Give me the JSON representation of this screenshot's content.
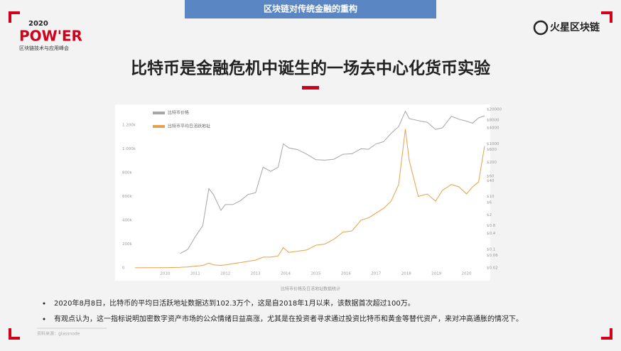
{
  "header": {
    "banner": "区块链对传统金融的重构",
    "logo_year": "2020",
    "logo_name": "POW'ER",
    "logo_subtitle": "区块链技术与应用峰会",
    "brand": "火星区块链"
  },
  "title": "比特币是金融危机中诞生的一场去中心化货币实验",
  "chart_data": {
    "type": "line",
    "x": [
      2009.0,
      2009.5,
      2010.0,
      2010.5,
      2010.75,
      2011.0,
      2011.25,
      2011.45,
      2011.6,
      2011.85,
      2012.0,
      2012.25,
      2012.5,
      2012.75,
      2013.0,
      2013.25,
      2013.5,
      2013.75,
      2013.92,
      2014.1,
      2014.4,
      2014.7,
      2015.0,
      2015.3,
      2015.6,
      2015.9,
      2016.2,
      2016.5,
      2016.75,
      2017.0,
      2017.25,
      2017.5,
      2017.75,
      2017.97,
      2018.1,
      2018.4,
      2018.7,
      2018.97,
      2019.2,
      2019.5,
      2019.75,
      2020.0,
      2020.2,
      2020.4,
      2020.6
    ],
    "series": [
      {
        "name": "比特币价格",
        "color": "#a6a6a6",
        "axis": "y2",
        "values": [
          null,
          null,
          null,
          0.07,
          0.1,
          0.3,
          0.8,
          20,
          12,
          3,
          5,
          5,
          7,
          12,
          14,
          130,
          90,
          130,
          1000,
          700,
          600,
          400,
          250,
          240,
          260,
          400,
          420,
          650,
          620,
          1000,
          1200,
          2500,
          4500,
          17000,
          9000,
          7500,
          6500,
          3500,
          4000,
          11000,
          8500,
          7200,
          6000,
          9500,
          11500
        ]
      },
      {
        "name": "比特币平均日活跃地址",
        "color": "#e8a04a",
        "values": [
          500,
          1000,
          2000,
          5000,
          8000,
          15000,
          20000,
          40000,
          25000,
          20000,
          25000,
          35000,
          45000,
          55000,
          65000,
          90000,
          90000,
          100000,
          170000,
          130000,
          140000,
          150000,
          190000,
          200000,
          240000,
          300000,
          310000,
          400000,
          420000,
          460000,
          500000,
          560000,
          700000,
          1165000,
          900000,
          600000,
          620000,
          560000,
          650000,
          700000,
          680000,
          620000,
          680000,
          720000,
          1023000
        ]
      }
    ],
    "xlim": [
      2009,
      2020.6
    ],
    "xticks": [
      2010,
      2011,
      2012,
      2013,
      2014,
      2015,
      2016,
      2017,
      2018,
      2019,
      2020
    ],
    "ylim": [
      0,
      1330000
    ],
    "yticks": [
      0,
      {
        "value": 200000,
        "label": "200k"
      },
      {
        "value": 400000,
        "label": "400k"
      },
      {
        "value": 600000,
        "label": "600k"
      },
      {
        "value": 800000,
        "label": "800k"
      },
      {
        "value": 1000000,
        "label": "1 000k"
      },
      {
        "value": 1200000,
        "label": "1 200k"
      }
    ],
    "y2lim": [
      0.02,
      20000
    ],
    "y2_log": true,
    "y2ticks": [
      {
        "value": 20000,
        "label": "$20000"
      },
      {
        "value": 8000,
        "label": "$8000"
      },
      {
        "value": 4000,
        "label": "$4000"
      },
      {
        "value": 1000,
        "label": "$1000"
      },
      {
        "value": 600,
        "label": "$600"
      },
      {
        "value": 200,
        "label": "$200"
      },
      {
        "value": 60,
        "label": "$60"
      },
      {
        "value": 40,
        "label": "$40"
      },
      {
        "value": 10,
        "label": "$10"
      },
      {
        "value": 6,
        "label": "$6"
      },
      {
        "value": 2,
        "label": "$2"
      },
      {
        "value": 0.8,
        "label": "$0.8"
      },
      {
        "value": 0.4,
        "label": "$0.4"
      },
      {
        "value": 0.1,
        "label": "$0.1"
      },
      {
        "value": 0.06,
        "label": "$0.06"
      },
      {
        "value": 0.02,
        "label": "$0.02"
      }
    ],
    "legend": "top-left"
  },
  "caption": "比特币价格及日活地址数据统计",
  "bullets": [
    "2020年8月8日，比特币的平均日活跃地址数据达到102.3万个，这是自2018年1月以来，该数据首次超过100万。",
    "有观点认为，这一指标说明加密数字资产市场的公众情绪日益高涨，尤其是在投资者寻求通过投资比特币和黄金等替代资产，来对冲高通胀的情况下。"
  ],
  "source": "资料来源：glassnode"
}
